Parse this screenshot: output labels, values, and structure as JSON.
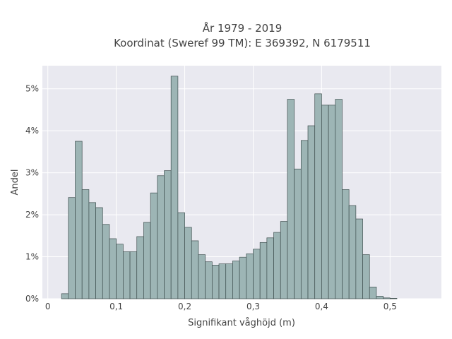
{
  "chart_data": {
    "type": "bar",
    "title": [
      "År 1979 - 2019",
      "Koordinat (Sweref 99 TM): E 369392, N 6179511"
    ],
    "xlabel": "Signifikant våghöjd (m)",
    "ylabel": "Andel",
    "xlim": [
      -0.008,
      0.575
    ],
    "ylim": [
      0,
      5.55
    ],
    "x_ticks": [
      0,
      0.1,
      0.2,
      0.3,
      0.4,
      0.5
    ],
    "x_tick_labels": [
      "0",
      "0,1",
      "0,2",
      "0,3",
      "0,4",
      "0,5"
    ],
    "y_ticks": [
      0,
      1,
      2,
      3,
      4,
      5
    ],
    "y_tick_labels": [
      "0%",
      "1%",
      "2%",
      "3%",
      "4%",
      "5%"
    ],
    "bin_start": 0.02,
    "bin_width": 0.01,
    "values": [
      0.12,
      2.41,
      3.75,
      2.6,
      2.29,
      2.17,
      1.77,
      1.43,
      1.3,
      1.12,
      1.12,
      1.48,
      1.82,
      2.52,
      2.93,
      3.05,
      5.3,
      2.05,
      1.7,
      1.38,
      1.05,
      0.88,
      0.8,
      0.83,
      0.83,
      0.9,
      0.99,
      1.07,
      1.18,
      1.34,
      1.45,
      1.58,
      1.84,
      4.75,
      3.09,
      3.77,
      4.12,
      4.88,
      4.61,
      4.61,
      4.75,
      2.6,
      2.22,
      1.9,
      1.05,
      0.28,
      0.06,
      0.02,
      0.01
    ],
    "grid": true,
    "colors": {
      "bar_fill": "#9db5b5",
      "bar_stroke": "#3f4f4f",
      "plot_bg": "#e9e9f0",
      "grid": "#ffffff"
    }
  }
}
